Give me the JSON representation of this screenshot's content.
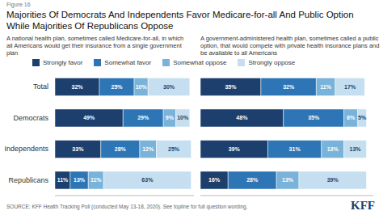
{
  "chart_data": [
    {
      "type": "bar",
      "title": "Majorities Of Democrats And Independents Favor Medicare-for-all And Public Option While Majorities Of Republicans Oppose",
      "subtitle": "A national health plan, sometimes called Medicare-for-all, in which all Americans would get their insurance from a single government plan",
      "annotations": [
        "Figure 16",
        "SOURCE: KFF Health Tracking Poll (conducted May 13-18, 2020). See topline for full question wording.",
        "KFF"
      ],
      "orientation": "horizontal",
      "stacked": true,
      "data_labels": true,
      "tick_labels": "y",
      "legend": "top",
      "categories": [
        "Total",
        "Democrats",
        "Independents",
        "Republicans"
      ],
      "xlim": [
        0,
        100
      ],
      "series": [
        {
          "name": "Strongly favor",
          "color": "#1c3f6e",
          "values": [
            32,
            49,
            33,
            11
          ],
          "value_labels": [
            "32%",
            "49%",
            "33%",
            "11%"
          ]
        },
        {
          "name": "Somewhat favor",
          "color": "#2e75b6",
          "values": [
            25,
            29,
            28,
            13
          ],
          "value_labels": [
            "25%",
            "29%",
            "28%",
            "13%"
          ]
        },
        {
          "name": "Somewhat oppose",
          "color": "#7ab3d9",
          "values": [
            10,
            9,
            12,
            11
          ],
          "value_labels": [
            "10%",
            "9%",
            "12%",
            "11%"
          ]
        },
        {
          "name": "Strongly oppose",
          "color": "#c5dff0",
          "values": [
            30,
            10,
            25,
            63
          ],
          "value_labels": [
            "30%",
            "10%",
            "25%",
            "63%"
          ]
        }
      ]
    },
    {
      "type": "bar",
      "subtitle": "A government-administered health plan, sometimes called a public option, that would compete with private health insurance plans and be available to all Americans",
      "orientation": "horizontal",
      "stacked": true,
      "data_labels": true,
      "tick_labels": false,
      "categories": [
        "Total",
        "Democrats",
        "Independents",
        "Republicans"
      ],
      "xlim": [
        0,
        100
      ],
      "series": [
        {
          "name": "Strongly favor",
          "color": "#1c3f6e",
          "values": [
            35,
            48,
            39,
            16
          ],
          "value_labels": [
            "35%",
            "48%",
            "39%",
            "16%"
          ]
        },
        {
          "name": "Somewhat favor",
          "color": "#2e75b6",
          "values": [
            32,
            35,
            31,
            28
          ],
          "value_labels": [
            "32%",
            "35%",
            "31%",
            "28%"
          ]
        },
        {
          "name": "Somewhat oppose",
          "color": "#7ab3d9",
          "values": [
            11,
            8,
            13,
            13
          ],
          "value_labels": [
            "11%",
            "8%",
            "13%",
            "13%"
          ]
        },
        {
          "name": "Strongly oppose",
          "color": "#c5dff0",
          "values": [
            17,
            5,
            13,
            39
          ],
          "value_labels": [
            "17%",
            "5%",
            "13%",
            "39%"
          ]
        }
      ]
    }
  ]
}
